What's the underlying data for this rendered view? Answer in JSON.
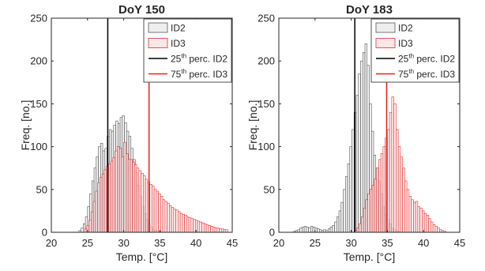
{
  "chart_data": [
    {
      "type": "bar",
      "title": "DoY 150",
      "xlabel": "Temp. [°C]",
      "ylabel": "Freq. [no.]",
      "xlim": [
        20,
        45
      ],
      "ylim": [
        0,
        250
      ],
      "xticks": [
        20,
        25,
        30,
        35,
        40,
        45
      ],
      "yticks": [
        0,
        50,
        100,
        150,
        200,
        250
      ],
      "bin_width": 0.3,
      "series": [
        {
          "name": "ID2",
          "color": "#555555",
          "fill": "#eeeeee",
          "x0": 23.8,
          "values": [
            2,
            5,
            10,
            18,
            30,
            45,
            60,
            75,
            88,
            100,
            104,
            95,
            98,
            112,
            120,
            118,
            125,
            130,
            127,
            134,
            136,
            128,
            118,
            112,
            98,
            85,
            70,
            55,
            42,
            30,
            22,
            15,
            10,
            6,
            3,
            2,
            1,
            1
          ]
        },
        {
          "name": "ID3",
          "color": "#e03030",
          "fill": "#fde7e7",
          "x0": 24.6,
          "values": [
            4,
            8,
            14,
            24,
            36,
            48,
            58,
            64,
            68,
            73,
            77,
            80,
            83,
            87,
            95,
            100,
            98,
            88,
            105,
            92,
            85,
            85,
            82,
            79,
            75,
            72,
            69,
            66,
            62,
            59,
            56,
            54,
            50,
            48,
            45,
            42,
            38,
            36,
            34,
            31,
            29,
            27,
            26,
            24,
            22,
            21,
            20,
            18,
            17,
            16,
            15,
            14,
            13,
            12,
            11,
            10,
            9,
            8,
            7,
            6,
            5,
            5,
            4,
            4,
            3,
            3
          ]
        }
      ],
      "vlines": [
        {
          "name": "25th perc. ID2",
          "x": 27.8,
          "color": "#000000"
        },
        {
          "name": "75th perc. ID3",
          "x": 33.5,
          "color": "#e82020"
        }
      ],
      "legend_placement": "top-right"
    },
    {
      "type": "bar",
      "title": "DoY 183",
      "xlabel": "Temp. [°C]",
      "ylabel": "Freq. [no.]",
      "xlim": [
        20,
        45
      ],
      "ylim": [
        0,
        250
      ],
      "xticks": [
        20,
        25,
        30,
        35,
        40,
        45
      ],
      "yticks": [
        0,
        50,
        100,
        150,
        200,
        250
      ],
      "bin_width": 0.3,
      "series": [
        {
          "name": "ID2",
          "color": "#555555",
          "fill": "#eeeeee",
          "x0": 22.0,
          "values": [
            1,
            2,
            3,
            5,
            6,
            7,
            6,
            5,
            7,
            6,
            5,
            4,
            3,
            2,
            3,
            2,
            4,
            6,
            8,
            12,
            18,
            25,
            35,
            50,
            65,
            80,
            100,
            120,
            140,
            160,
            185,
            200,
            210,
            220,
            195,
            150,
            118,
            90,
            75,
            60,
            45,
            30,
            20,
            15,
            10,
            5,
            3,
            2,
            1
          ]
        },
        {
          "name": "ID3",
          "color": "#e03030",
          "fill": "#fde7e7",
          "x0": 30.5,
          "values": [
            2,
            5,
            10,
            18,
            28,
            38,
            45,
            50,
            55,
            62,
            75,
            85,
            92,
            100,
            110,
            120,
            140,
            158,
            150,
            120,
            100,
            88,
            75,
            60,
            50,
            42,
            38,
            35,
            36,
            30,
            28,
            25,
            22,
            20,
            16,
            12,
            9,
            7,
            5,
            3,
            2,
            1
          ]
        }
      ],
      "vlines": [
        {
          "name": "25th perc. ID2",
          "x": 30.5,
          "color": "#000000"
        },
        {
          "name": "75th perc. ID3",
          "x": 34.9,
          "color": "#e82020"
        }
      ],
      "legend_placement": "top-right"
    }
  ]
}
